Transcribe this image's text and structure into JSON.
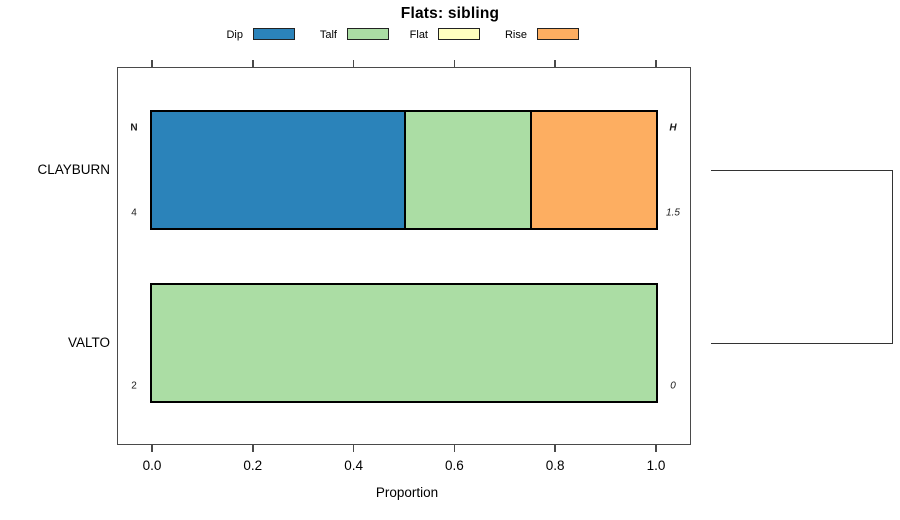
{
  "title": "Flats: sibling",
  "legend": {
    "position": "top",
    "items": [
      {
        "label": "Dip",
        "color": "#2b83ba"
      },
      {
        "label": "Talf",
        "color": "#abdda4"
      },
      {
        "label": "Flat",
        "color": "#ffffbf"
      },
      {
        "label": "Rise",
        "color": "#fdae61"
      }
    ]
  },
  "chart_data": {
    "type": "bar",
    "subtype": "horizontal-stacked-proportion",
    "title": "Flats: sibling",
    "xlabel": "Proportion",
    "xlim": [
      0.0,
      1.0
    ],
    "x_ticks": [
      0.0,
      0.2,
      0.4,
      0.6,
      0.8,
      1.0
    ],
    "x_tick_labels": [
      "0.0",
      "0.2",
      "0.4",
      "0.6",
      "0.8",
      "1.0"
    ],
    "grid": false,
    "legend_position": "top",
    "categories": [
      "Dip",
      "Talf",
      "Flat",
      "Rise"
    ],
    "colors": [
      "#2b83ba",
      "#abdda4",
      "#ffffbf",
      "#fdae61"
    ],
    "annotations": {
      "left_header": "N",
      "right_header": "H"
    },
    "rows": [
      {
        "label": "CLAYBURN",
        "N": "4",
        "H": "1.5",
        "segments": [
          {
            "category": "Dip",
            "from": 0.0,
            "to": 0.5
          },
          {
            "category": "Talf",
            "from": 0.5,
            "to": 0.75
          },
          {
            "category": "Rise",
            "from": 0.75,
            "to": 1.0
          }
        ]
      },
      {
        "label": "VALTO",
        "N": "2",
        "H": "0",
        "segments": [
          {
            "category": "Talf",
            "from": 0.0,
            "to": 1.0
          }
        ]
      }
    ],
    "right_bracket": {
      "connects": [
        "CLAYBURN",
        "VALTO"
      ]
    }
  }
}
